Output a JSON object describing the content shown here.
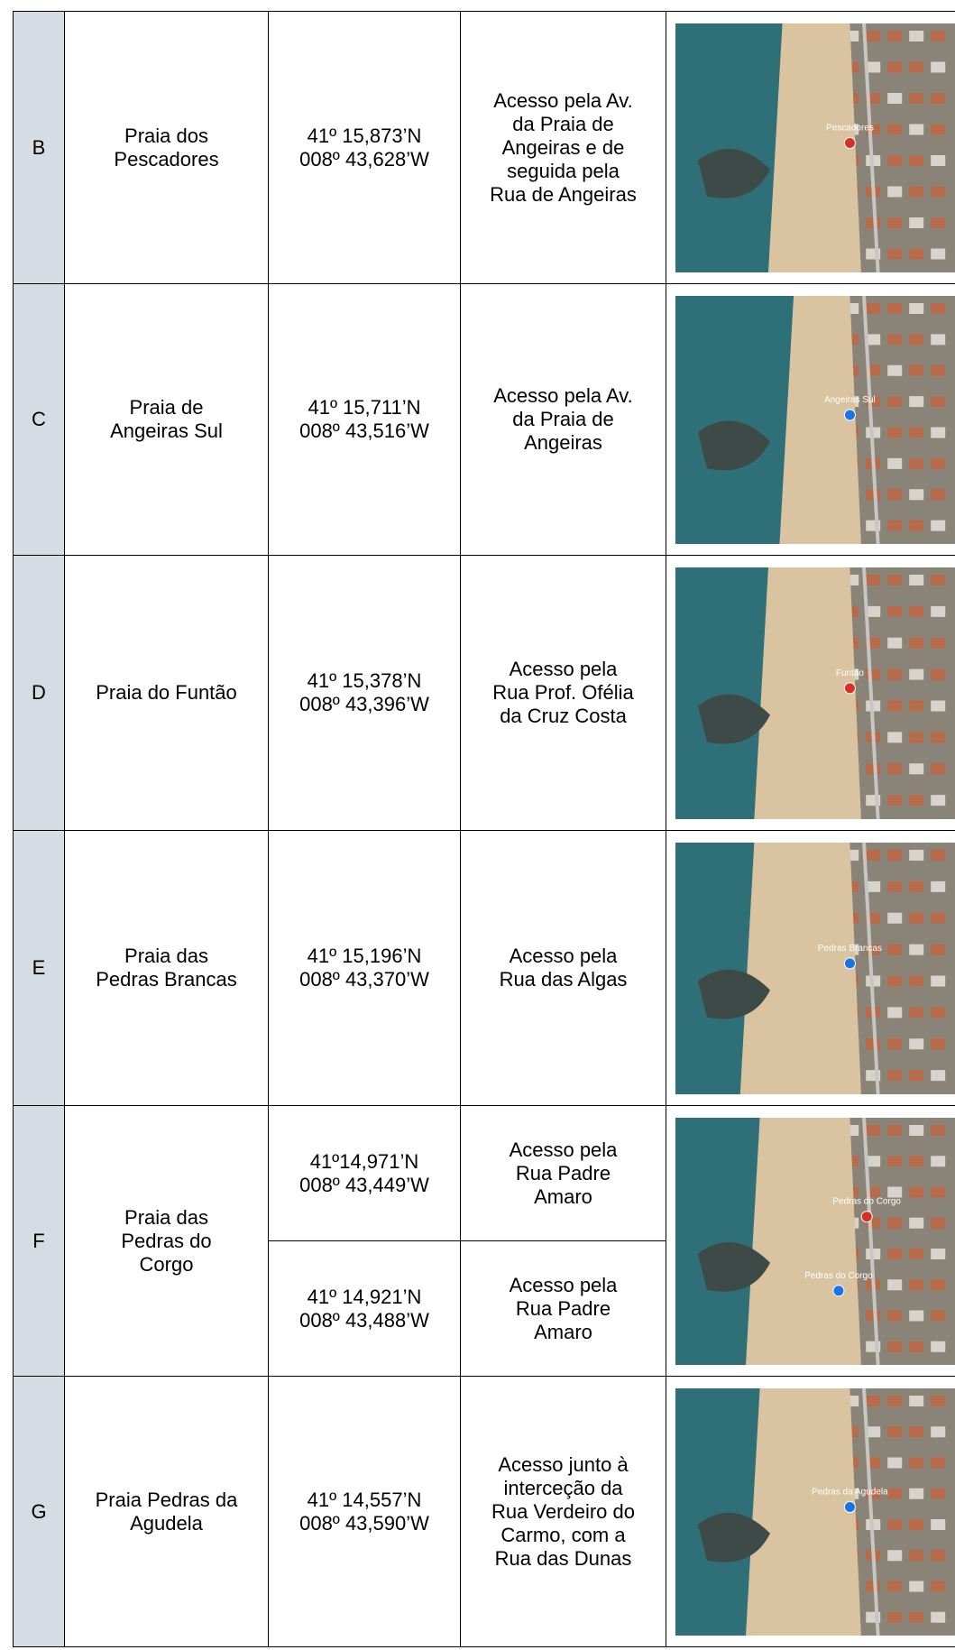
{
  "table": {
    "rows": [
      {
        "letter": "B",
        "name": [
          "Praia dos",
          "Pescadores"
        ],
        "entries": [
          {
            "coords": [
              "41º 15,873’N",
              "008º 43,628’W"
            ],
            "access": [
              "Acesso pela Av.",
              "da Praia de",
              "Angeiras e de",
              "seguida pela",
              "Rua de Angeiras"
            ]
          }
        ],
        "map": {
          "pins": [
            {
              "label": "Pescadores",
              "color": "#d93025"
            }
          ]
        }
      },
      {
        "letter": "C",
        "name": [
          "Praia de",
          "Angeiras Sul"
        ],
        "entries": [
          {
            "coords": [
              "41º 15,711’N",
              "008º 43,516’W"
            ],
            "access": [
              "Acesso pela Av.",
              "da Praia de",
              "Angeiras"
            ]
          }
        ],
        "map": {
          "pins": [
            {
              "label": "Angeiras Sul",
              "color": "#1a73e8"
            }
          ]
        }
      },
      {
        "letter": "D",
        "name": [
          "Praia do Funtão"
        ],
        "entries": [
          {
            "coords": [
              "41º 15,378’N",
              "008º 43,396’W"
            ],
            "access": [
              "Acesso pela",
              "Rua Prof. Ofélia",
              "da Cruz Costa"
            ]
          }
        ],
        "map": {
          "pins": [
            {
              "label": "Funtão",
              "color": "#d93025"
            }
          ]
        }
      },
      {
        "letter": "E",
        "name": [
          "Praia das",
          "Pedras Brancas"
        ],
        "entries": [
          {
            "coords": [
              "41º 15,196’N",
              "008º 43,370’W"
            ],
            "access": [
              "Acesso pela",
              "Rua das Algas"
            ]
          }
        ],
        "map": {
          "pins": [
            {
              "label": "Pedras Brancas",
              "color": "#1a73e8"
            }
          ]
        }
      },
      {
        "letter": "F",
        "name": [
          "Praia das",
          "Pedras do",
          "Corgo"
        ],
        "entries": [
          {
            "coords": [
              "41º14,971’N",
              "008º 43,449’W"
            ],
            "access": [
              "Acesso pela",
              "Rua Padre",
              "Amaro"
            ]
          },
          {
            "coords": [
              "41º 14,921’N",
              "008º 43,488’W"
            ],
            "access": [
              "Acesso pela",
              "Rua Padre",
              "Amaro"
            ]
          }
        ],
        "map": {
          "pins": [
            {
              "label": "Pedras do Corgo",
              "color": "#d93025"
            },
            {
              "label": "Pedras do Corgo",
              "color": "#1a73e8"
            }
          ]
        }
      },
      {
        "letter": "G",
        "name": [
          "Praia Pedras da",
          "Agudela"
        ],
        "entries": [
          {
            "coords": [
              "41º 14,557’N",
              "008º 43,590’W"
            ],
            "access": [
              "Acesso junto à",
              "interceção da",
              "Rua Verdeiro do",
              "Carmo, com a",
              "Rua das Dunas"
            ]
          }
        ],
        "map": {
          "pins": [
            {
              "label": "Pedras da Agudela",
              "color": "#1a73e8"
            }
          ]
        }
      }
    ]
  }
}
